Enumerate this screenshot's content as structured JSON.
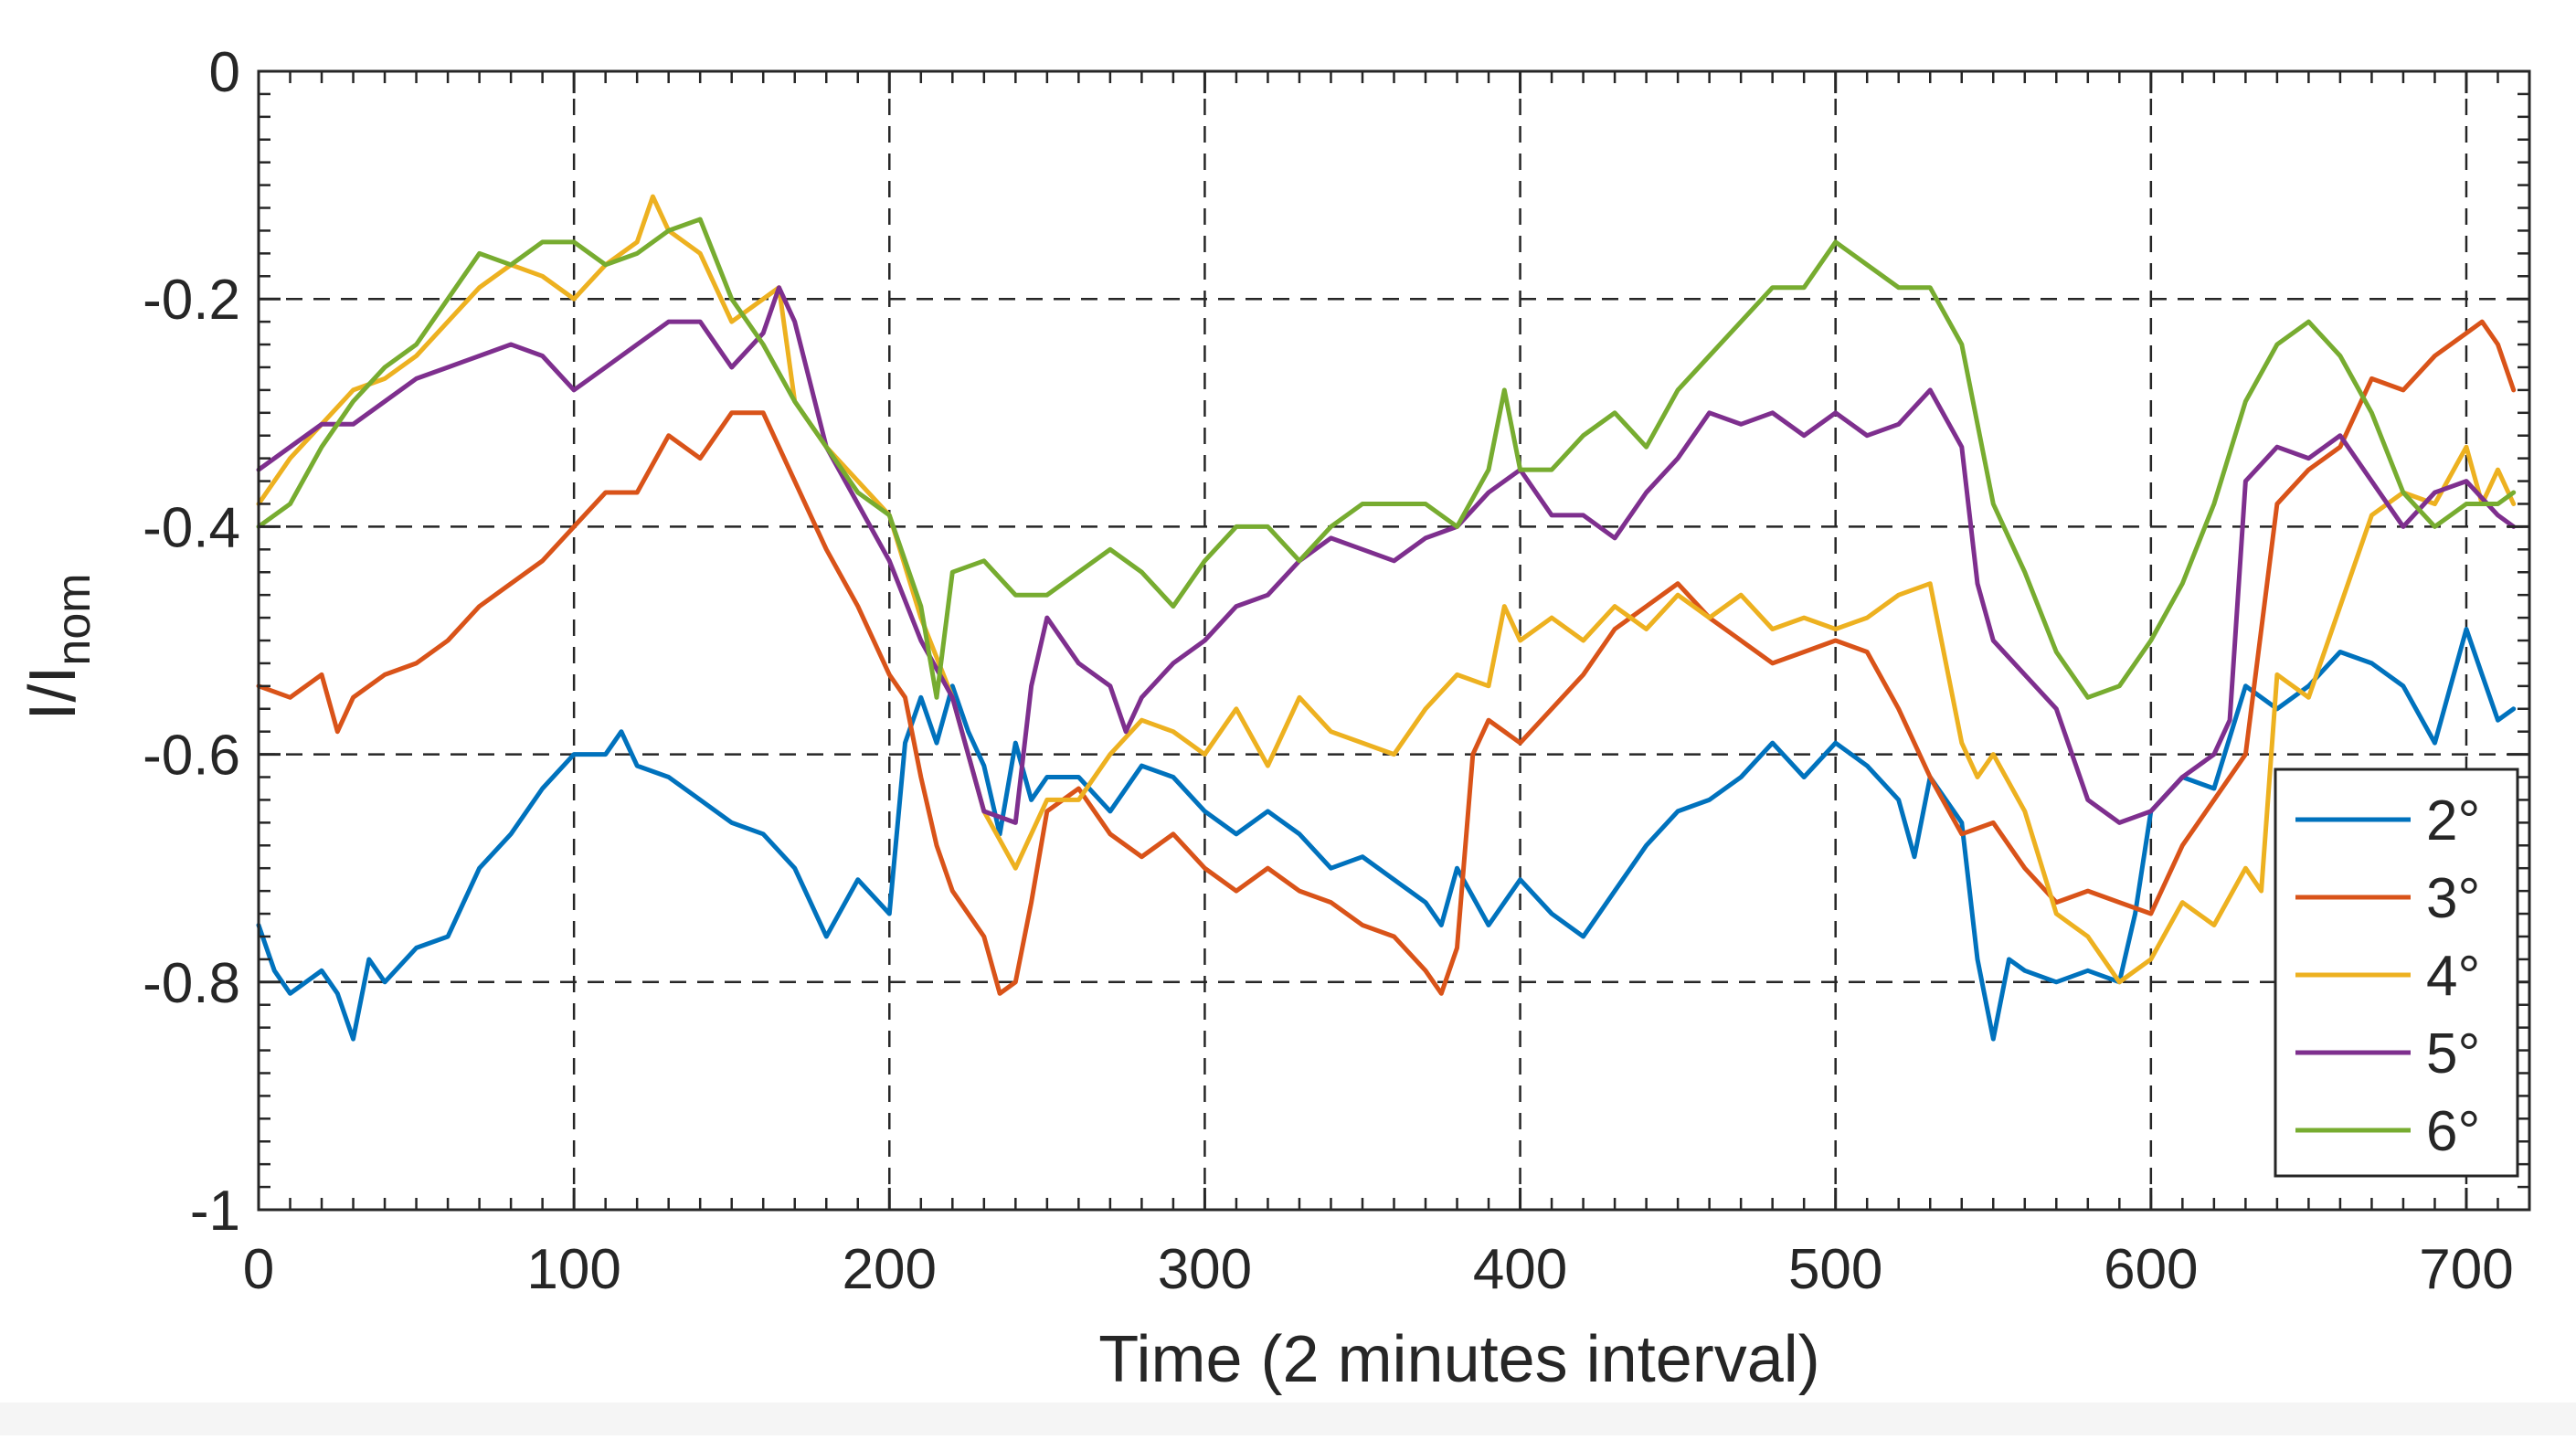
{
  "chart_data": {
    "type": "line",
    "title": "",
    "xlabel": "Time (2 minutes interval)",
    "ylabel": {
      "main": "I/I",
      "sub": "nom"
    },
    "xlim": [
      0,
      720
    ],
    "ylim": [
      -1,
      0
    ],
    "xticks": [
      0,
      100,
      200,
      300,
      400,
      500,
      600,
      700
    ],
    "yticks": [
      0,
      -0.2,
      -0.4,
      -0.6,
      -0.8,
      -1
    ],
    "xtick_labels": [
      "0",
      "100",
      "200",
      "300",
      "400",
      "500",
      "600",
      "700"
    ],
    "ytick_labels": [
      "0",
      "-0.2",
      "-0.4",
      "-0.6",
      "-0.8",
      "-1"
    ],
    "grid": true,
    "legend_position": "bottom-right",
    "series": [
      {
        "name": "2°",
        "color": "#0072BD",
        "x": [
          0,
          5,
          10,
          20,
          25,
          30,
          35,
          40,
          50,
          60,
          70,
          80,
          90,
          100,
          110,
          115,
          120,
          130,
          140,
          150,
          160,
          170,
          175,
          180,
          190,
          200,
          205,
          210,
          215,
          220,
          225,
          230,
          235,
          240,
          245,
          250,
          260,
          270,
          280,
          290,
          300,
          310,
          320,
          330,
          340,
          350,
          360,
          370,
          375,
          380,
          390,
          400,
          410,
          420,
          430,
          440,
          450,
          460,
          470,
          480,
          490,
          500,
          510,
          520,
          525,
          530,
          540,
          545,
          550,
          555,
          560,
          570,
          580,
          590,
          595,
          600,
          610,
          620,
          630,
          640,
          650,
          660,
          670,
          680,
          690,
          700,
          705,
          710,
          715
        ],
        "y": [
          -0.75,
          -0.79,
          -0.81,
          -0.79,
          -0.81,
          -0.85,
          -0.78,
          -0.8,
          -0.77,
          -0.76,
          -0.7,
          -0.67,
          -0.63,
          -0.6,
          -0.6,
          -0.58,
          -0.61,
          -0.62,
          -0.64,
          -0.66,
          -0.67,
          -0.7,
          -0.73,
          -0.76,
          -0.71,
          -0.74,
          -0.59,
          -0.55,
          -0.59,
          -0.54,
          -0.58,
          -0.61,
          -0.67,
          -0.59,
          -0.64,
          -0.62,
          -0.62,
          -0.65,
          -0.61,
          -0.62,
          -0.65,
          -0.67,
          -0.65,
          -0.67,
          -0.7,
          -0.69,
          -0.71,
          -0.73,
          -0.75,
          -0.7,
          -0.75,
          -0.71,
          -0.74,
          -0.76,
          -0.72,
          -0.68,
          -0.65,
          -0.64,
          -0.62,
          -0.59,
          -0.62,
          -0.59,
          -0.61,
          -0.64,
          -0.69,
          -0.62,
          -0.66,
          -0.78,
          -0.85,
          -0.78,
          -0.79,
          -0.8,
          -0.79,
          -0.8,
          -0.74,
          -0.65,
          -0.62,
          -0.63,
          -0.54,
          -0.56,
          -0.54,
          -0.51,
          -0.52,
          -0.54,
          -0.59,
          -0.49,
          -0.53,
          -0.57,
          -0.56
        ]
      },
      {
        "name": "3°",
        "color": "#D95319",
        "x": [
          0,
          10,
          20,
          25,
          30,
          40,
          50,
          60,
          70,
          80,
          90,
          100,
          110,
          120,
          130,
          140,
          150,
          160,
          170,
          180,
          190,
          200,
          205,
          210,
          215,
          220,
          230,
          235,
          240,
          245,
          250,
          260,
          270,
          280,
          290,
          300,
          310,
          320,
          330,
          340,
          350,
          360,
          370,
          375,
          380,
          385,
          390,
          400,
          410,
          420,
          430,
          440,
          450,
          460,
          470,
          480,
          490,
          500,
          510,
          520,
          530,
          540,
          550,
          560,
          570,
          580,
          590,
          600,
          610,
          620,
          630,
          640,
          650,
          660,
          670,
          680,
          690,
          700,
          705,
          710,
          715
        ],
        "y": [
          -0.54,
          -0.55,
          -0.53,
          -0.58,
          -0.55,
          -0.53,
          -0.52,
          -0.5,
          -0.47,
          -0.45,
          -0.43,
          -0.4,
          -0.37,
          -0.37,
          -0.32,
          -0.34,
          -0.3,
          -0.3,
          -0.36,
          -0.42,
          -0.47,
          -0.53,
          -0.55,
          -0.62,
          -0.68,
          -0.72,
          -0.76,
          -0.81,
          -0.8,
          -0.73,
          -0.65,
          -0.63,
          -0.67,
          -0.69,
          -0.67,
          -0.7,
          -0.72,
          -0.7,
          -0.72,
          -0.73,
          -0.75,
          -0.76,
          -0.79,
          -0.81,
          -0.77,
          -0.6,
          -0.57,
          -0.59,
          -0.56,
          -0.53,
          -0.49,
          -0.47,
          -0.45,
          -0.48,
          -0.5,
          -0.52,
          -0.51,
          -0.5,
          -0.51,
          -0.56,
          -0.62,
          -0.67,
          -0.66,
          -0.7,
          -0.73,
          -0.72,
          -0.73,
          -0.74,
          -0.68,
          -0.64,
          -0.6,
          -0.38,
          -0.35,
          -0.33,
          -0.27,
          -0.28,
          -0.25,
          -0.23,
          -0.22,
          -0.24,
          -0.28
        ]
      },
      {
        "name": "4°",
        "color": "#EDB120",
        "x": [
          0,
          10,
          20,
          30,
          40,
          50,
          60,
          70,
          80,
          90,
          100,
          110,
          120,
          125,
          130,
          140,
          150,
          160,
          165,
          170,
          180,
          190,
          200,
          210,
          220,
          230,
          240,
          250,
          260,
          270,
          280,
          290,
          300,
          310,
          320,
          330,
          340,
          350,
          360,
          370,
          380,
          390,
          395,
          400,
          410,
          420,
          430,
          440,
          450,
          460,
          470,
          480,
          490,
          500,
          510,
          520,
          530,
          540,
          545,
          550,
          560,
          570,
          575,
          580,
          590,
          600,
          610,
          620,
          630,
          635,
          640,
          650,
          660,
          670,
          680,
          690,
          700,
          705,
          710,
          715
        ],
        "y": [
          -0.38,
          -0.34,
          -0.31,
          -0.28,
          -0.27,
          -0.25,
          -0.22,
          -0.19,
          -0.17,
          -0.18,
          -0.2,
          -0.17,
          -0.15,
          -0.11,
          -0.14,
          -0.16,
          -0.22,
          -0.2,
          -0.19,
          -0.29,
          -0.33,
          -0.36,
          -0.39,
          -0.48,
          -0.55,
          -0.65,
          -0.7,
          -0.64,
          -0.64,
          -0.6,
          -0.57,
          -0.58,
          -0.6,
          -0.56,
          -0.61,
          -0.55,
          -0.58,
          -0.59,
          -0.6,
          -0.56,
          -0.53,
          -0.54,
          -0.47,
          -0.5,
          -0.48,
          -0.5,
          -0.47,
          -0.49,
          -0.46,
          -0.48,
          -0.46,
          -0.49,
          -0.48,
          -0.49,
          -0.48,
          -0.46,
          -0.45,
          -0.59,
          -0.62,
          -0.6,
          -0.65,
          -0.74,
          -0.75,
          -0.76,
          -0.8,
          -0.78,
          -0.73,
          -0.75,
          -0.7,
          -0.72,
          -0.53,
          -0.55,
          -0.47,
          -0.39,
          -0.37,
          -0.38,
          -0.33,
          -0.38,
          -0.35,
          -0.38
        ]
      },
      {
        "name": "5°",
        "color": "#7E2F8E",
        "x": [
          0,
          10,
          20,
          30,
          40,
          50,
          60,
          70,
          80,
          90,
          100,
          110,
          120,
          130,
          140,
          150,
          160,
          165,
          170,
          180,
          190,
          200,
          210,
          220,
          230,
          240,
          245,
          250,
          260,
          270,
          275,
          280,
          290,
          300,
          310,
          320,
          330,
          340,
          350,
          360,
          370,
          380,
          390,
          400,
          410,
          420,
          430,
          440,
          450,
          460,
          470,
          480,
          490,
          500,
          510,
          520,
          530,
          540,
          545,
          550,
          560,
          570,
          580,
          590,
          600,
          610,
          620,
          625,
          630,
          640,
          650,
          660,
          670,
          680,
          690,
          700,
          710,
          715
        ],
        "y": [
          -0.35,
          -0.33,
          -0.31,
          -0.31,
          -0.29,
          -0.27,
          -0.26,
          -0.25,
          -0.24,
          -0.25,
          -0.28,
          -0.26,
          -0.24,
          -0.22,
          -0.22,
          -0.26,
          -0.23,
          -0.19,
          -0.22,
          -0.33,
          -0.38,
          -0.43,
          -0.5,
          -0.55,
          -0.65,
          -0.66,
          -0.54,
          -0.48,
          -0.52,
          -0.54,
          -0.58,
          -0.55,
          -0.52,
          -0.5,
          -0.47,
          -0.46,
          -0.43,
          -0.41,
          -0.42,
          -0.43,
          -0.41,
          -0.4,
          -0.37,
          -0.35,
          -0.39,
          -0.39,
          -0.41,
          -0.37,
          -0.34,
          -0.3,
          -0.31,
          -0.3,
          -0.32,
          -0.3,
          -0.32,
          -0.31,
          -0.28,
          -0.33,
          -0.45,
          -0.5,
          -0.53,
          -0.56,
          -0.64,
          -0.66,
          -0.65,
          -0.62,
          -0.6,
          -0.57,
          -0.36,
          -0.33,
          -0.34,
          -0.32,
          -0.36,
          -0.4,
          -0.37,
          -0.36,
          -0.39,
          -0.4
        ]
      },
      {
        "name": "6°",
        "color": "#77AC30",
        "x": [
          0,
          10,
          20,
          30,
          40,
          50,
          60,
          70,
          80,
          90,
          100,
          110,
          120,
          130,
          140,
          150,
          160,
          170,
          180,
          190,
          200,
          210,
          215,
          220,
          230,
          240,
          250,
          260,
          270,
          280,
          290,
          300,
          310,
          320,
          330,
          340,
          350,
          360,
          370,
          380,
          390,
          395,
          400,
          410,
          420,
          430,
          440,
          450,
          460,
          470,
          480,
          490,
          500,
          510,
          520,
          530,
          540,
          550,
          560,
          570,
          580,
          590,
          600,
          610,
          620,
          630,
          640,
          650,
          660,
          670,
          680,
          690,
          700,
          710,
          715
        ],
        "y": [
          -0.4,
          -0.38,
          -0.33,
          -0.29,
          -0.26,
          -0.24,
          -0.2,
          -0.16,
          -0.17,
          -0.15,
          -0.15,
          -0.17,
          -0.16,
          -0.14,
          -0.13,
          -0.2,
          -0.24,
          -0.29,
          -0.33,
          -0.37,
          -0.39,
          -0.47,
          -0.55,
          -0.44,
          -0.43,
          -0.46,
          -0.46,
          -0.44,
          -0.42,
          -0.44,
          -0.47,
          -0.43,
          -0.4,
          -0.4,
          -0.43,
          -0.4,
          -0.38,
          -0.38,
          -0.38,
          -0.4,
          -0.35,
          -0.28,
          -0.35,
          -0.35,
          -0.32,
          -0.3,
          -0.33,
          -0.28,
          -0.25,
          -0.22,
          -0.19,
          -0.19,
          -0.15,
          -0.17,
          -0.19,
          -0.19,
          -0.24,
          -0.38,
          -0.44,
          -0.51,
          -0.55,
          -0.54,
          -0.5,
          -0.45,
          -0.38,
          -0.29,
          -0.24,
          -0.22,
          -0.25,
          -0.3,
          -0.37,
          -0.4,
          -0.38,
          -0.38,
          -0.37
        ]
      }
    ]
  }
}
